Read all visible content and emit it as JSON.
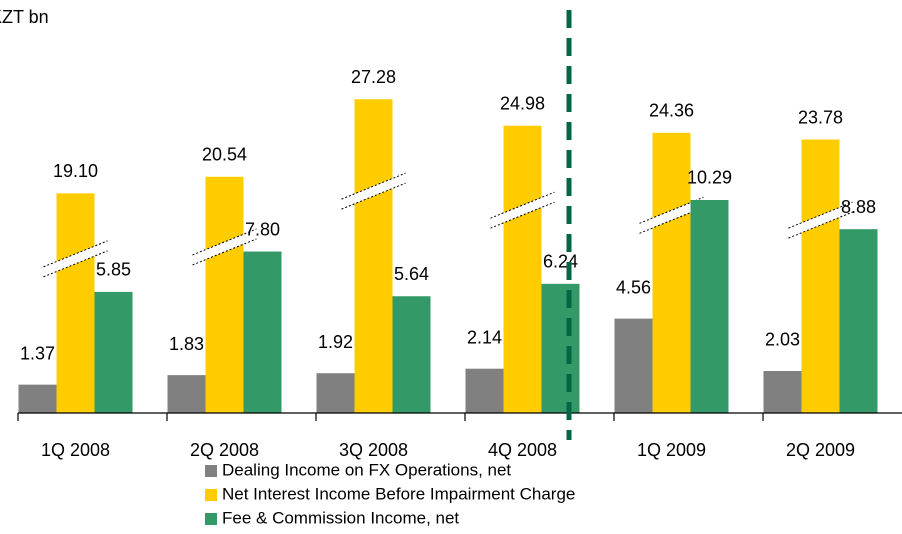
{
  "chart_data": {
    "type": "bar",
    "unit_label": "KZT bn",
    "categories": [
      "1Q 2008",
      "2Q 2008",
      "3Q 2008",
      "4Q 2008",
      "1Q 2009",
      "2Q 2009"
    ],
    "series": [
      {
        "name": "Dealing Income on FX Operations, net",
        "color": "#808080",
        "values": [
          1.37,
          1.83,
          1.92,
          2.14,
          4.56,
          2.03
        ],
        "value_labels": [
          "1.37",
          "1.83",
          "1.92",
          "2.14",
          "4.56",
          "2.03"
        ]
      },
      {
        "name": "Net Interest Income Before Impairment Charge",
        "color": "#ffcc00",
        "values": [
          19.1,
          20.54,
          27.28,
          24.98,
          24.36,
          23.78
        ],
        "value_labels": [
          "19.10",
          "20.54",
          "27.28",
          "24.98",
          "24.36",
          "23.78"
        ]
      },
      {
        "name": "Fee & Commission Income, net",
        "color": "#339966",
        "values": [
          5.85,
          7.8,
          5.64,
          6.24,
          10.29,
          8.88
        ],
        "value_labels": [
          "5.85",
          "7.80",
          "5.64",
          "6.24",
          "10.29",
          "8.88"
        ]
      }
    ],
    "divider_color": "#006644"
  }
}
